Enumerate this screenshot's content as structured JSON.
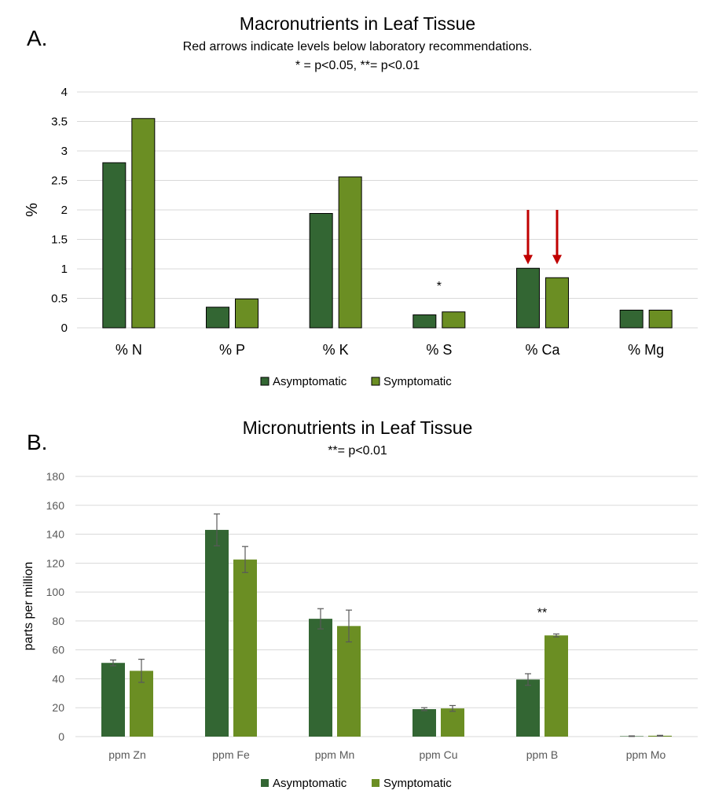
{
  "panel_a_label": "A.",
  "panel_b_label": "B.",
  "colors": {
    "asymptomatic": "#336633",
    "symptomatic": "#6b8e23",
    "arrow": "#c00000",
    "grid": "#d9d9d9",
    "errorbar": "#595959"
  },
  "chart_data": [
    {
      "type": "bar",
      "title": "Macronutrients in Leaf Tissue",
      "subtitle_lines": [
        "Red arrows indicate levels below laboratory recommendations.",
        "* = p<0.05,  **= p<0.01"
      ],
      "xlabel": "",
      "ylabel": "%",
      "ylim": [
        0,
        4
      ],
      "yticks": [
        "0",
        "0.5",
        "1",
        "1.5",
        "2",
        "2.5",
        "3",
        "3.5",
        "4"
      ],
      "categories": [
        "% N",
        "% P",
        "% K",
        "% S",
        "% Ca",
        "% Mg"
      ],
      "series": [
        {
          "name": "Asymptomatic",
          "values": [
            2.8,
            0.35,
            1.94,
            0.22,
            1.01,
            0.3
          ]
        },
        {
          "name": "Symptomatic",
          "values": [
            3.55,
            0.49,
            2.56,
            0.27,
            0.85,
            0.3
          ]
        }
      ],
      "significance": [
        {
          "category": "% S",
          "label": "*"
        }
      ],
      "arrows": [
        {
          "category": "% Ca",
          "series": "Asymptomatic"
        },
        {
          "category": "% Ca",
          "series": "Symptomatic"
        }
      ],
      "grid": true,
      "legend": "bottom"
    },
    {
      "type": "bar",
      "title": "Micronutrients in Leaf Tissue",
      "subtitle_lines": [
        "**= p<0.01"
      ],
      "xlabel": "",
      "ylabel": "parts per million",
      "ylim": [
        0,
        180
      ],
      "yticks": [
        "0",
        "20",
        "40",
        "60",
        "80",
        "100",
        "120",
        "140",
        "160",
        "180"
      ],
      "categories": [
        "ppm Zn",
        "ppm Fe",
        "ppm Mn",
        "ppm Cu",
        "ppm B",
        "ppm Mo"
      ],
      "series": [
        {
          "name": "Asymptomatic",
          "values": [
            51,
            143,
            81.5,
            19,
            39.5,
            0.3
          ],
          "errors": [
            2,
            11,
            7,
            1,
            4,
            0.2
          ]
        },
        {
          "name": "Symptomatic",
          "values": [
            45.5,
            122.5,
            76.5,
            19.5,
            70,
            0.6
          ],
          "errors": [
            8,
            9,
            11,
            2,
            1,
            0.3
          ]
        }
      ],
      "significance": [
        {
          "category": "ppm B",
          "label": "**"
        }
      ],
      "grid": true,
      "legend": "bottom"
    }
  ]
}
